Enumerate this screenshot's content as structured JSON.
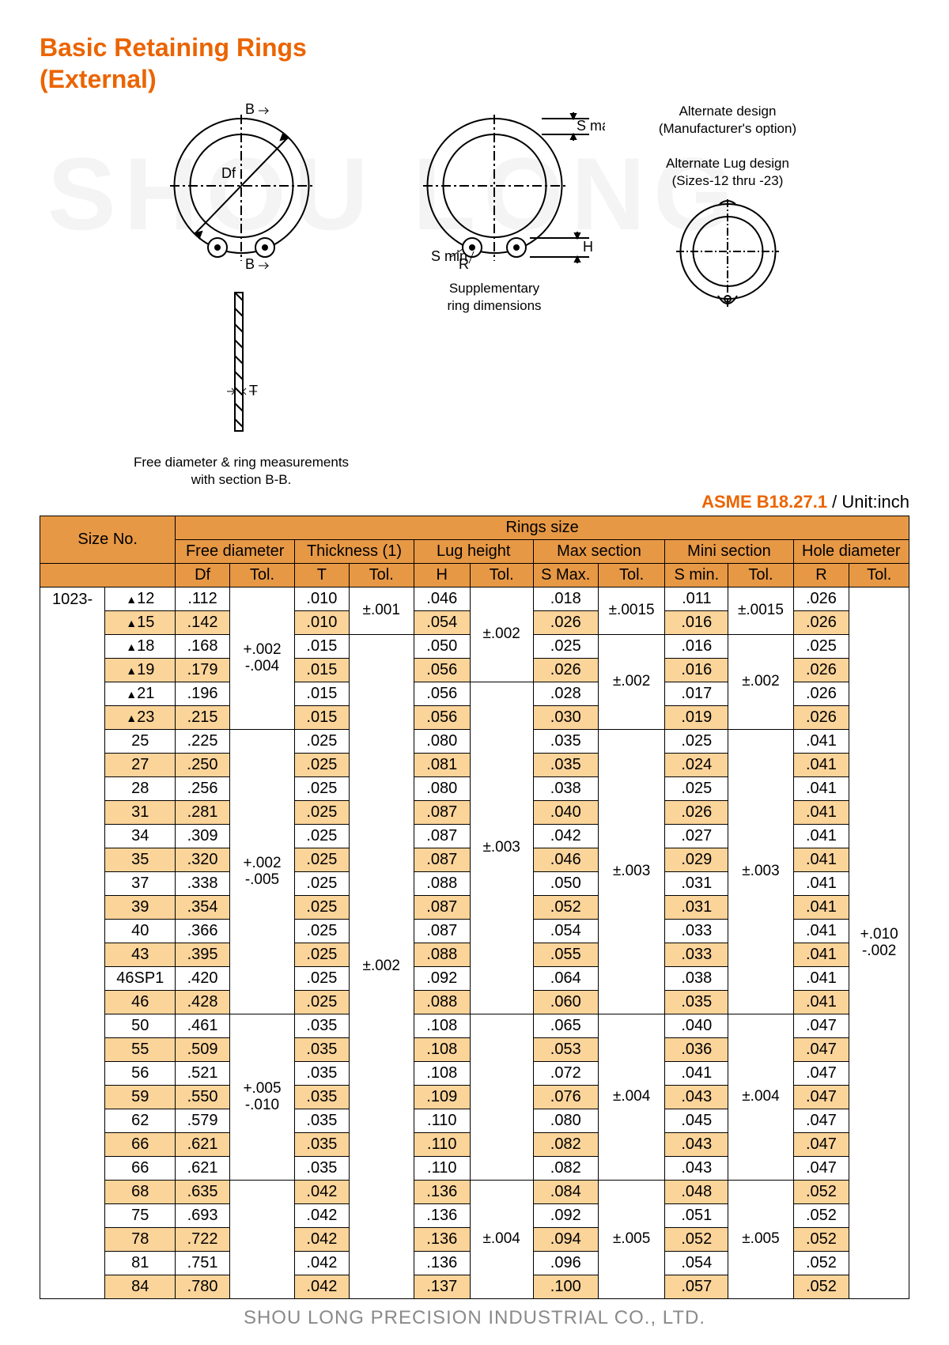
{
  "title": {
    "line1": "Basic Retaining Rings",
    "line2": "(External)"
  },
  "diagrams": {
    "left_caption": "Free diameter & ring measurements\nwith section B-B.",
    "mid_caption": "Supplementary\nring dimensions",
    "alt1": "Alternate design\n(Manufacturer's option)",
    "alt2": "Alternate Lug design\n(Sizes-12 thru -23)",
    "labels": {
      "B": "B",
      "Df": "Df",
      "T": "T",
      "Smax": "S max.",
      "Smin": "S min",
      "R": "R",
      "H": "H"
    }
  },
  "standard": {
    "code": "ASME B18.27.1",
    "unit": " / Unit:inch"
  },
  "table": {
    "header": {
      "rings_size": "Rings size",
      "size_no": "Size No.",
      "groups": [
        "Free diameter",
        "Thickness (1)",
        "Lug height",
        "Max section",
        "Mini section",
        "Hole diameter"
      ],
      "sub": [
        "Df",
        "Tol.",
        "T",
        "Tol.",
        "H",
        "Tol.",
        "S Max.",
        "Tol.",
        "S min.",
        "Tol.",
        "R",
        "Tol."
      ]
    },
    "series": "1023-",
    "rows": [
      {
        "size": "▲12",
        "df": ".112",
        "t": ".010",
        "h": ".046",
        "smax": ".018",
        "smin": ".011",
        "r": ".026",
        "stripe": false
      },
      {
        "size": "▲15",
        "df": ".142",
        "t": ".010",
        "h": ".054",
        "smax": ".026",
        "smin": ".016",
        "r": ".026",
        "stripe": true
      },
      {
        "size": "▲18",
        "df": ".168",
        "t": ".015",
        "h": ".050",
        "smax": ".025",
        "smin": ".016",
        "r": ".025",
        "stripe": false
      },
      {
        "size": "▲19",
        "df": ".179",
        "t": ".015",
        "h": ".056",
        "smax": ".026",
        "smin": ".016",
        "r": ".026",
        "stripe": true
      },
      {
        "size": "▲21",
        "df": ".196",
        "t": ".015",
        "h": ".056",
        "smax": ".028",
        "smin": ".017",
        "r": ".026",
        "stripe": false
      },
      {
        "size": "▲23",
        "df": ".215",
        "t": ".015",
        "h": ".056",
        "smax": ".030",
        "smin": ".019",
        "r": ".026",
        "stripe": true
      },
      {
        "size": "25",
        "df": ".225",
        "t": ".025",
        "h": ".080",
        "smax": ".035",
        "smin": ".025",
        "r": ".041",
        "stripe": false
      },
      {
        "size": "27",
        "df": ".250",
        "t": ".025",
        "h": ".081",
        "smax": ".035",
        "smin": ".024",
        "r": ".041",
        "stripe": true
      },
      {
        "size": "28",
        "df": ".256",
        "t": ".025",
        "h": ".080",
        "smax": ".038",
        "smin": ".025",
        "r": ".041",
        "stripe": false
      },
      {
        "size": "31",
        "df": ".281",
        "t": ".025",
        "h": ".087",
        "smax": ".040",
        "smin": ".026",
        "r": ".041",
        "stripe": true
      },
      {
        "size": "34",
        "df": ".309",
        "t": ".025",
        "h": ".087",
        "smax": ".042",
        "smin": ".027",
        "r": ".041",
        "stripe": false
      },
      {
        "size": "35",
        "df": ".320",
        "t": ".025",
        "h": ".087",
        "smax": ".046",
        "smin": ".029",
        "r": ".041",
        "stripe": true
      },
      {
        "size": "37",
        "df": ".338",
        "t": ".025",
        "h": ".088",
        "smax": ".050",
        "smin": ".031",
        "r": ".041",
        "stripe": false
      },
      {
        "size": "39",
        "df": ".354",
        "t": ".025",
        "h": ".087",
        "smax": ".052",
        "smin": ".031",
        "r": ".041",
        "stripe": true
      },
      {
        "size": "40",
        "df": ".366",
        "t": ".025",
        "h": ".087",
        "smax": ".054",
        "smin": ".033",
        "r": ".041",
        "stripe": false
      },
      {
        "size": "43",
        "df": ".395",
        "t": ".025",
        "h": ".088",
        "smax": ".055",
        "smin": ".033",
        "r": ".041",
        "stripe": true
      },
      {
        "size": "46SP1",
        "df": ".420",
        "t": ".025",
        "h": ".092",
        "smax": ".064",
        "smin": ".038",
        "r": ".041",
        "stripe": false
      },
      {
        "size": "46",
        "df": ".428",
        "t": ".025",
        "h": ".088",
        "smax": ".060",
        "smin": ".035",
        "r": ".041",
        "stripe": true
      },
      {
        "size": "50",
        "df": ".461",
        "t": ".035",
        "h": ".108",
        "smax": ".065",
        "smin": ".040",
        "r": ".047",
        "stripe": false
      },
      {
        "size": "55",
        "df": ".509",
        "t": ".035",
        "h": ".108",
        "smax": ".053",
        "smin": ".036",
        "r": ".047",
        "stripe": true
      },
      {
        "size": "56",
        "df": ".521",
        "t": ".035",
        "h": ".108",
        "smax": ".072",
        "smin": ".041",
        "r": ".047",
        "stripe": false
      },
      {
        "size": "59",
        "df": ".550",
        "t": ".035",
        "h": ".109",
        "smax": ".076",
        "smin": ".043",
        "r": ".047",
        "stripe": true
      },
      {
        "size": "62",
        "df": ".579",
        "t": ".035",
        "h": ".110",
        "smax": ".080",
        "smin": ".045",
        "r": ".047",
        "stripe": false
      },
      {
        "size": "66",
        "df": ".621",
        "t": ".035",
        "h": ".110",
        "smax": ".082",
        "smin": ".043",
        "r": ".047",
        "stripe": true
      },
      {
        "size": "66",
        "df": ".621",
        "t": ".035",
        "h": ".110",
        "smax": ".082",
        "smin": ".043",
        "r": ".047",
        "stripe": false
      },
      {
        "size": "68",
        "df": ".635",
        "t": ".042",
        "h": ".136",
        "smax": ".084",
        "smin": ".048",
        "r": ".052",
        "stripe": true
      },
      {
        "size": "75",
        "df": ".693",
        "t": ".042",
        "h": ".136",
        "smax": ".092",
        "smin": ".051",
        "r": ".052",
        "stripe": false
      },
      {
        "size": "78",
        "df": ".722",
        "t": ".042",
        "h": ".136",
        "smax": ".094",
        "smin": ".052",
        "r": ".052",
        "stripe": true
      },
      {
        "size": "81",
        "df": ".751",
        "t": ".042",
        "h": ".136",
        "smax": ".096",
        "smin": ".054",
        "r": ".052",
        "stripe": false
      },
      {
        "size": "84",
        "df": ".780",
        "t": ".042",
        "h": ".137",
        "smax": ".100",
        "smin": ".057",
        "r": ".052",
        "stripe": true
      }
    ],
    "tolerances": {
      "df": [
        {
          "start": 0,
          "span": 6,
          "text": "+.002\n-.004"
        },
        {
          "start": 6,
          "span": 12,
          "text": "+.002\n-.005"
        },
        {
          "start": 18,
          "span": 7,
          "text": "+.005\n-.010"
        },
        {
          "start": 25,
          "span": 5,
          "text": ""
        }
      ],
      "t": [
        {
          "start": 0,
          "span": 2,
          "text": "±.001"
        },
        {
          "start": 2,
          "span": 28,
          "text": "±.002"
        }
      ],
      "h": [
        {
          "start": 0,
          "span": 4,
          "text": "±.002"
        },
        {
          "start": 4,
          "span": 14,
          "text": "±.003"
        },
        {
          "start": 18,
          "span": 7,
          "text": ""
        },
        {
          "start": 25,
          "span": 5,
          "text": "±.004"
        }
      ],
      "smax": [
        {
          "start": 0,
          "span": 2,
          "text": "±.0015"
        },
        {
          "start": 2,
          "span": 4,
          "text": "±.002"
        },
        {
          "start": 6,
          "span": 12,
          "text": "±.003"
        },
        {
          "start": 18,
          "span": 7,
          "text": "±.004"
        },
        {
          "start": 25,
          "span": 5,
          "text": "±.005"
        }
      ],
      "smin": [
        {
          "start": 0,
          "span": 2,
          "text": "±.0015"
        },
        {
          "start": 2,
          "span": 4,
          "text": "±.002"
        },
        {
          "start": 6,
          "span": 12,
          "text": "±.003"
        },
        {
          "start": 18,
          "span": 7,
          "text": "±.004"
        },
        {
          "start": 25,
          "span": 5,
          "text": "±.005"
        }
      ],
      "r": [
        {
          "start": 0,
          "span": 30,
          "text": "+.010\n-.002"
        }
      ]
    }
  },
  "footer": "SHOU LONG PRECISION INDUSTRIAL CO., LTD.",
  "colors": {
    "accent": "#eb6400",
    "header_bg": "#e79845",
    "stripe_bg": "#fbd49a",
    "footer": "#8a8a8a",
    "border": "#000000",
    "background": "#ffffff"
  },
  "typography": {
    "title_fontsize_pt": 24,
    "table_fontsize_pt": 15,
    "caption_fontsize_pt": 13,
    "footer_fontsize_pt": 18
  }
}
